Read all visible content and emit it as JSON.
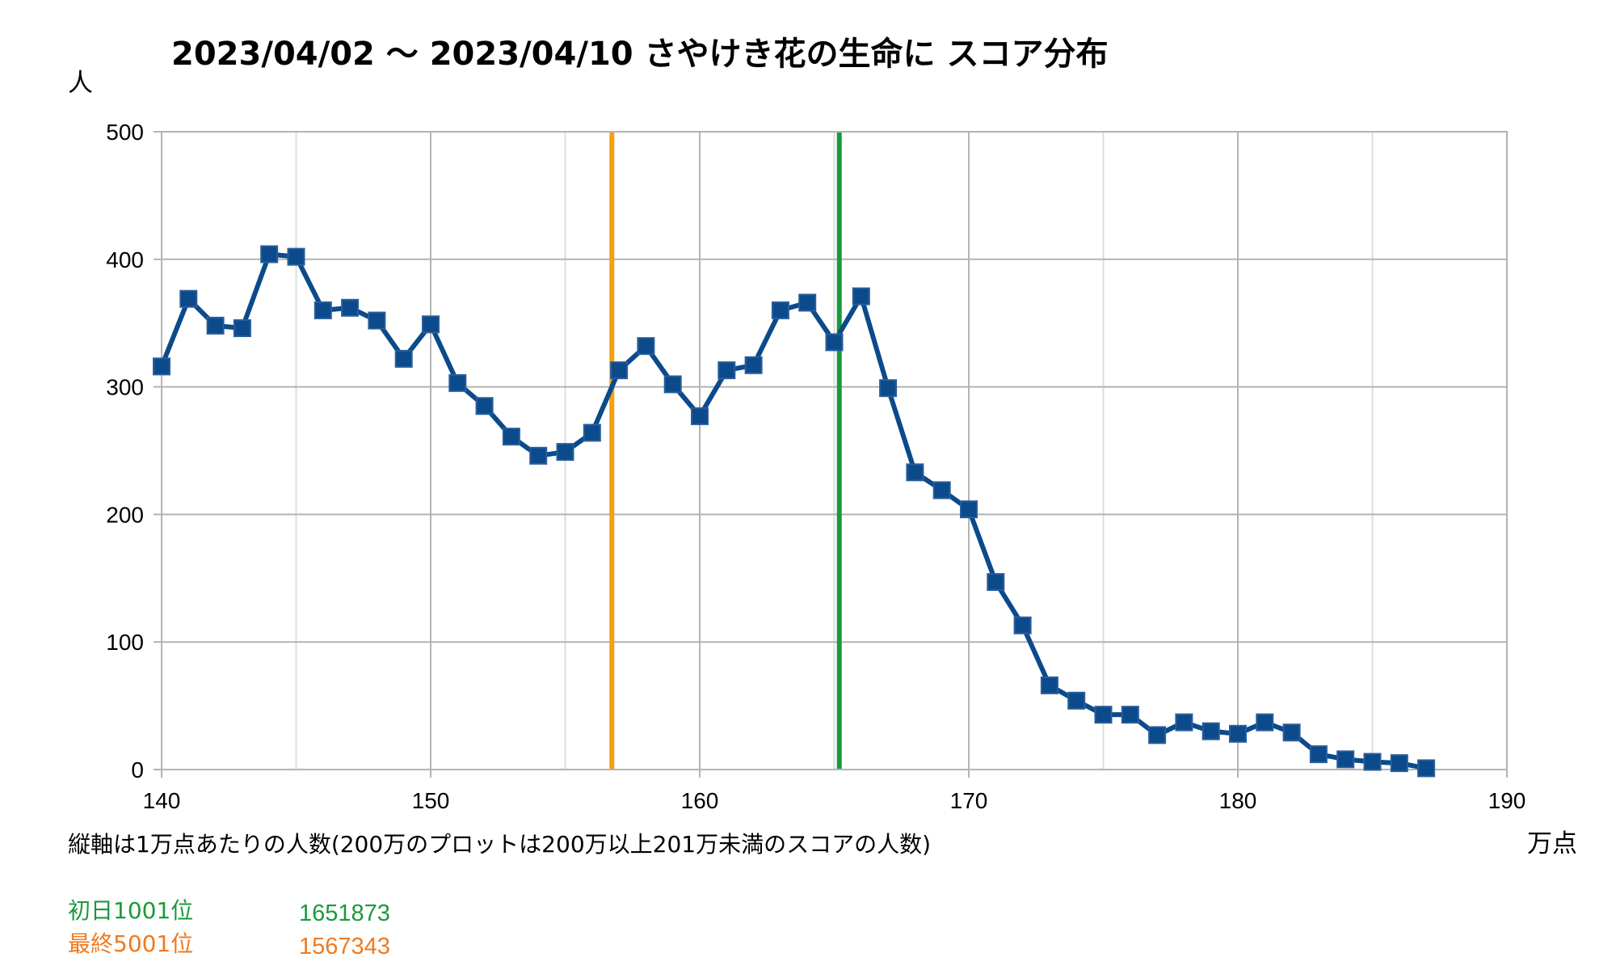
{
  "chart_data": {
    "type": "line",
    "title": "2023/04/02 ～ 2023/04/10 さやけき花の生命に スコア分布",
    "ylabel": "人",
    "xlabel": "万点",
    "note": "縦軸は1万点あたりの人数(200万のプロットは200万以上201万未満のスコアの人数)",
    "xlim": [
      140,
      190
    ],
    "ylim": [
      0,
      500
    ],
    "x_ticks": [
      "140",
      "150",
      "160",
      "170",
      "180",
      "190"
    ],
    "y_ticks": [
      "0",
      "100",
      "200",
      "300",
      "400",
      "500"
    ],
    "grid": true,
    "series": [
      {
        "color": "#0b4a8b",
        "marker": "square",
        "x": [
          140,
          141,
          142,
          143,
          144,
          145,
          146,
          147,
          148,
          149,
          150,
          151,
          152,
          153,
          154,
          155,
          156,
          157,
          158,
          159,
          160,
          161,
          162,
          163,
          164,
          165,
          166,
          167,
          168,
          169,
          170,
          171,
          172,
          173,
          174,
          175,
          176,
          177,
          178,
          179,
          180,
          181,
          182,
          183,
          184,
          185,
          186,
          187
        ],
        "values": [
          316,
          369,
          348,
          346,
          404,
          402,
          360,
          362,
          352,
          322,
          349,
          303,
          285,
          261,
          246,
          249,
          264,
          313,
          332,
          302,
          277,
          313,
          317,
          360,
          366,
          335,
          371,
          299,
          233,
          219,
          204,
          147,
          113,
          66,
          54,
          43,
          43,
          27,
          37,
          30,
          28,
          37,
          29,
          12,
          8,
          6,
          5,
          1
        ]
      }
    ],
    "reference_lines": [
      {
        "label": "初日1001位",
        "value": "1651873",
        "x": 165.1873,
        "color": "#1a9a3b",
        "text_color": "#1a9a3b"
      },
      {
        "label": "最終5001位",
        "value": "1567343",
        "x": 156.7343,
        "color": "#f5a00f",
        "text_color": "#f07a1e"
      }
    ]
  }
}
